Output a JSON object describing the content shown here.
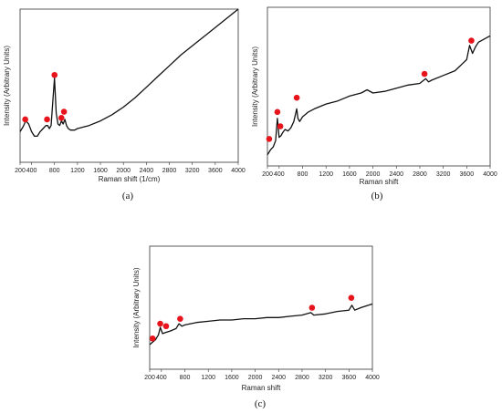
{
  "chart_data": [
    {
      "panel": "(a)",
      "type": "line",
      "xlabel": "Raman shift (1/cm)",
      "ylabel": "Intensity (Arbitrary Units)",
      "xlim": [
        200,
        4000
      ],
      "ylim": [
        0,
        100
      ],
      "xticks": [
        200,
        400,
        800,
        1200,
        1600,
        2000,
        2400,
        2800,
        3200,
        3600,
        4000
      ],
      "xtick_labels": [
        "200",
        "400",
        "800",
        "1200",
        "1600",
        "2000",
        "2400",
        "2800",
        "3200",
        "3600",
        "4000"
      ],
      "grid": false,
      "series": [
        {
          "x": [
            200,
            250,
            300,
            350,
            400,
            450,
            500,
            550,
            600,
            650,
            680,
            710,
            740,
            770,
            800,
            830,
            860,
            890,
            920,
            950,
            980,
            1010,
            1040,
            1080,
            1150,
            1200,
            1300,
            1400,
            1600,
            1800,
            2000,
            2200,
            2400,
            2600,
            2800,
            3000,
            3200,
            3400,
            3600,
            3800,
            4000
          ],
          "y": [
            20,
            23,
            27,
            25,
            20,
            17,
            17,
            20,
            22,
            24,
            24,
            22,
            24,
            40,
            55,
            32,
            25,
            24,
            27,
            25,
            28,
            24,
            22,
            21,
            21,
            22,
            23,
            24,
            27,
            31,
            36,
            42,
            49,
            56,
            63,
            70,
            76,
            82,
            88,
            94,
            100
          ]
        }
      ],
      "markers": {
        "x": [
          290,
          670,
          800,
          920,
          965
        ],
        "y": [
          28,
          28,
          57,
          29,
          33
        ]
      }
    },
    {
      "panel": "(b)",
      "type": "line",
      "xlabel": "Raman shift",
      "ylabel": "Intensity (Arbitrary Units)",
      "xlim": [
        200,
        4000
      ],
      "ylim": [
        0,
        100
      ],
      "xticks": [
        200,
        400,
        800,
        1200,
        1600,
        2000,
        2400,
        2800,
        3200,
        3600,
        4000
      ],
      "xtick_labels": [
        "200",
        "400",
        "800",
        "1200",
        "1600",
        "2000",
        "2400",
        "2800",
        "3200",
        "3600",
        "4000"
      ],
      "grid": false,
      "series": [
        {
          "x": [
            200,
            250,
            300,
            340,
            370,
            400,
            430,
            460,
            500,
            550,
            600,
            650,
            700,
            720,
            750,
            800,
            900,
            1000,
            1200,
            1400,
            1600,
            1800,
            1900,
            2000,
            2200,
            2400,
            2600,
            2800,
            2900,
            2950,
            3000,
            3200,
            3400,
            3600,
            3650,
            3700,
            3750,
            3800,
            3900,
            4000
          ],
          "y": [
            7,
            10,
            12,
            16,
            30,
            18,
            19,
            21,
            23,
            22,
            24,
            28,
            36,
            30,
            28,
            31,
            34,
            36,
            39,
            41,
            44,
            46,
            48,
            46,
            47,
            49,
            51,
            52,
            55,
            53,
            54,
            57,
            60,
            67,
            76,
            71,
            75,
            78,
            80,
            82
          ]
        }
      ],
      "markers": {
        "x": [
          230,
          370,
          420,
          700,
          2880,
          3680
        ],
        "y": [
          17,
          34,
          25,
          43,
          58,
          79
        ]
      }
    },
    {
      "panel": "(c)",
      "type": "line",
      "xlabel": "Raman shift",
      "ylabel": "Intensity (Arbitrary Units)",
      "xlim": [
        200,
        4000
      ],
      "ylim": [
        0,
        100
      ],
      "xticks": [
        200,
        400,
        800,
        1200,
        1600,
        2000,
        2400,
        2800,
        3200,
        3600,
        4000
      ],
      "xtick_labels": [
        "200",
        "400",
        "800",
        "1200",
        "1600",
        "2000",
        "2400",
        "2800",
        "3200",
        "3600",
        "4000"
      ],
      "grid": false,
      "series": [
        {
          "x": [
            200,
            250,
            300,
            350,
            380,
            420,
            480,
            550,
            650,
            700,
            750,
            800,
            1000,
            1200,
            1400,
            1600,
            1800,
            2000,
            2200,
            2400,
            2600,
            2800,
            2950,
            3000,
            3200,
            3400,
            3600,
            3650,
            3700,
            3800,
            4000
          ],
          "y": [
            20,
            22,
            24,
            28,
            34,
            29,
            30,
            31,
            33,
            37,
            35,
            36,
            38,
            39,
            40,
            40,
            41,
            41,
            42,
            42,
            43,
            44,
            46,
            44,
            45,
            47,
            48,
            52,
            48,
            50,
            53
          ]
        }
      ],
      "markers": {
        "x": [
          250,
          380,
          480,
          720,
          2970,
          3640
        ],
        "y": [
          25,
          37,
          35,
          41,
          50,
          58
        ]
      }
    }
  ]
}
